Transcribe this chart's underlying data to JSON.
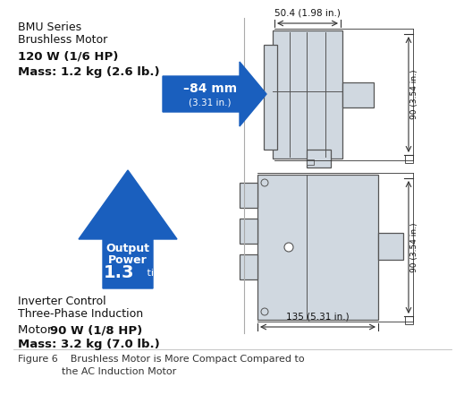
{
  "bg_color": "#ffffff",
  "bmu_line1": "BMU Series",
  "bmu_line2": "Brushless Motor",
  "bmu_bold1": "120 W (1/6 HP)",
  "bmu_bold2": "Mass: 1.2 kg (2.6 lb.)",
  "inv_line1": "Inverter Control",
  "inv_line2": "Three-Phase Induction",
  "inv_mixed_normal": "Motor ",
  "inv_mixed_bold": "90 W (1/8 HP)",
  "inv_bold2": "Mass: 3.2 kg (7.0 lb.)",
  "arrow_color": "#1a5fbe",
  "arrow_right_text1": "–84 mm",
  "arrow_right_text2": "(3.31 in.)",
  "arrow_up_text1": "Output",
  "arrow_up_text2": "Power",
  "arrow_up_num": "1.3",
  "arrow_up_times": " times",
  "dim_50": "50.4 (1.98 in.)",
  "dim_135": "135 (5.31 in.)",
  "dim_90_top": "90 (3.54 in.)",
  "dim_90_bot": "90 (3.54 in.)",
  "motor_color": "#d0d8e0",
  "motor_outline": "#555555",
  "caption_line1": "Figure 6    Brushless Motor is More Compact Compared to",
  "caption_line2": "              the AC Induction Motor"
}
